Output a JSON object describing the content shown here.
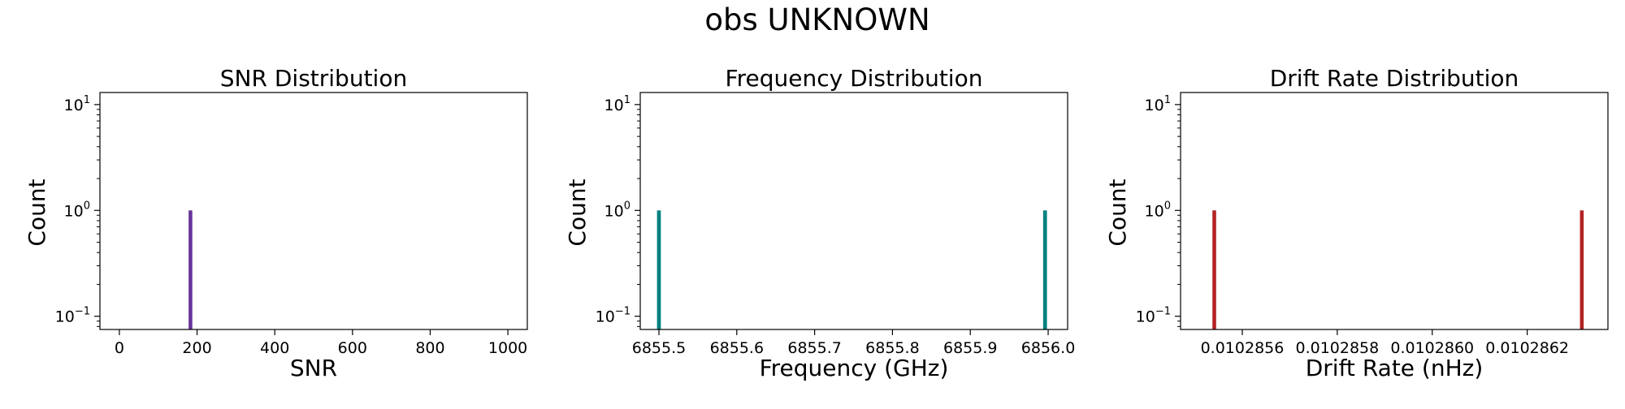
{
  "figure": {
    "title": "obs UNKNOWN"
  },
  "chart_data": [
    {
      "type": "bar",
      "title": "SNR Distribution",
      "xlabel": "SNR",
      "ylabel": "Count",
      "yscale": "log",
      "color": "#663399",
      "xlim": [
        -50,
        1050
      ],
      "ylim": [
        0.075,
        13
      ],
      "xticks": [
        0,
        200,
        400,
        600,
        800,
        1000
      ],
      "xtick_labels": [
        "0",
        "200",
        "400",
        "600",
        "800",
        "1000"
      ],
      "ytick_labels": [
        {
          "base": "10",
          "exp": "−1",
          "value": 0.1
        },
        {
          "base": "10",
          "exp": "0",
          "value": 1
        },
        {
          "base": "10",
          "exp": "1",
          "value": 10
        }
      ],
      "bars": [
        {
          "x": 183,
          "width": 9.5,
          "count": 1
        }
      ]
    },
    {
      "type": "bar",
      "title": "Frequency Distribution",
      "xlabel": "Frequency (GHz)",
      "ylabel": "Count",
      "yscale": "log",
      "color": "#008080",
      "xlim": [
        6855.476,
        6856.025
      ],
      "ylim": [
        0.075,
        13
      ],
      "xticks": [
        6855.5,
        6855.6,
        6855.7,
        6855.8,
        6855.9,
        6856.0
      ],
      "xtick_labels": [
        "6855.5",
        "6855.6",
        "6855.7",
        "6855.8",
        "6855.9",
        "6856.0"
      ],
      "ytick_labels": [
        {
          "base": "10",
          "exp": "−1",
          "value": 0.1
        },
        {
          "base": "10",
          "exp": "0",
          "value": 1
        },
        {
          "base": "10",
          "exp": "1",
          "value": 10
        }
      ],
      "bars": [
        {
          "x": 6855.5,
          "width": 0.0049,
          "count": 1
        },
        {
          "x": 6855.996,
          "width": 0.0049,
          "count": 1
        }
      ]
    },
    {
      "type": "bar",
      "title": "Drift Rate Distribution",
      "xlabel": "Drift Rate (nHz)",
      "ylabel": "Count",
      "yscale": "log",
      "color": "#b22222",
      "xlim": [
        0.01028547,
        0.01028637
      ],
      "ylim": [
        0.075,
        13
      ],
      "xticks": [
        0.0102856,
        0.0102858,
        0.010286,
        0.0102862
      ],
      "xtick_labels": [
        "0.0102856",
        "0.0102858",
        "0.0102860",
        "0.0102862"
      ],
      "ytick_labels": [
        {
          "base": "10",
          "exp": "−1",
          "value": 0.1
        },
        {
          "base": "10",
          "exp": "0",
          "value": 1
        },
        {
          "base": "10",
          "exp": "1",
          "value": 10
        }
      ],
      "bars": [
        {
          "x": 0.010285541,
          "width": 7.8e-09,
          "count": 1
        },
        {
          "x": 0.010286315,
          "width": 7.8e-09,
          "count": 1
        }
      ]
    }
  ]
}
